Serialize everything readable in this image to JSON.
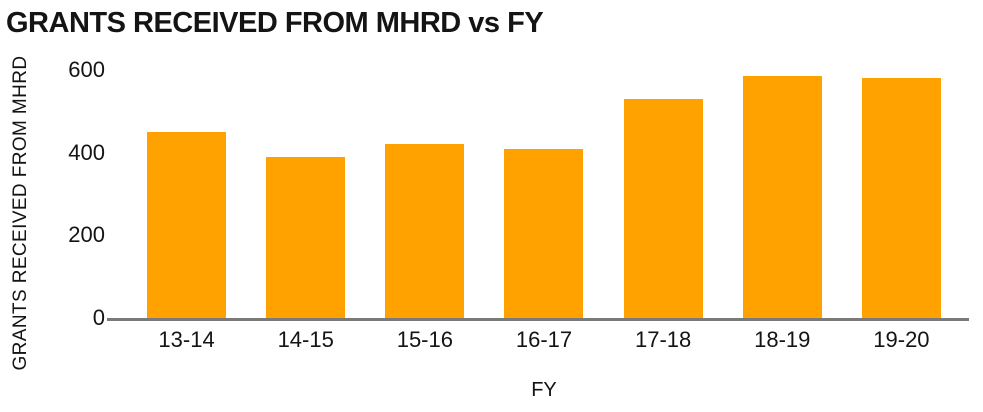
{
  "colors": {
    "bar": "#FFA200",
    "axis_line": "#7a7a7a",
    "text": "#141414",
    "background": "#ffffff"
  },
  "chart_data": {
    "type": "bar",
    "title": "GRANTS RECEIVED FROM MHRD vs FY",
    "categories": [
      "13-14",
      "14-15",
      "15-16",
      "16-17",
      "17-18",
      "18-19",
      "19-20"
    ],
    "values": [
      450,
      390,
      420,
      410,
      530,
      585,
      580
    ],
    "xlabel": "FY",
    "ylabel": "GRANTS RECEIVED FROM MHRD",
    "yticks": [
      0,
      200,
      400,
      600
    ],
    "ylim": [
      0,
      600
    ],
    "grid": false,
    "legend": "none",
    "bar_color": "#FFA200"
  }
}
